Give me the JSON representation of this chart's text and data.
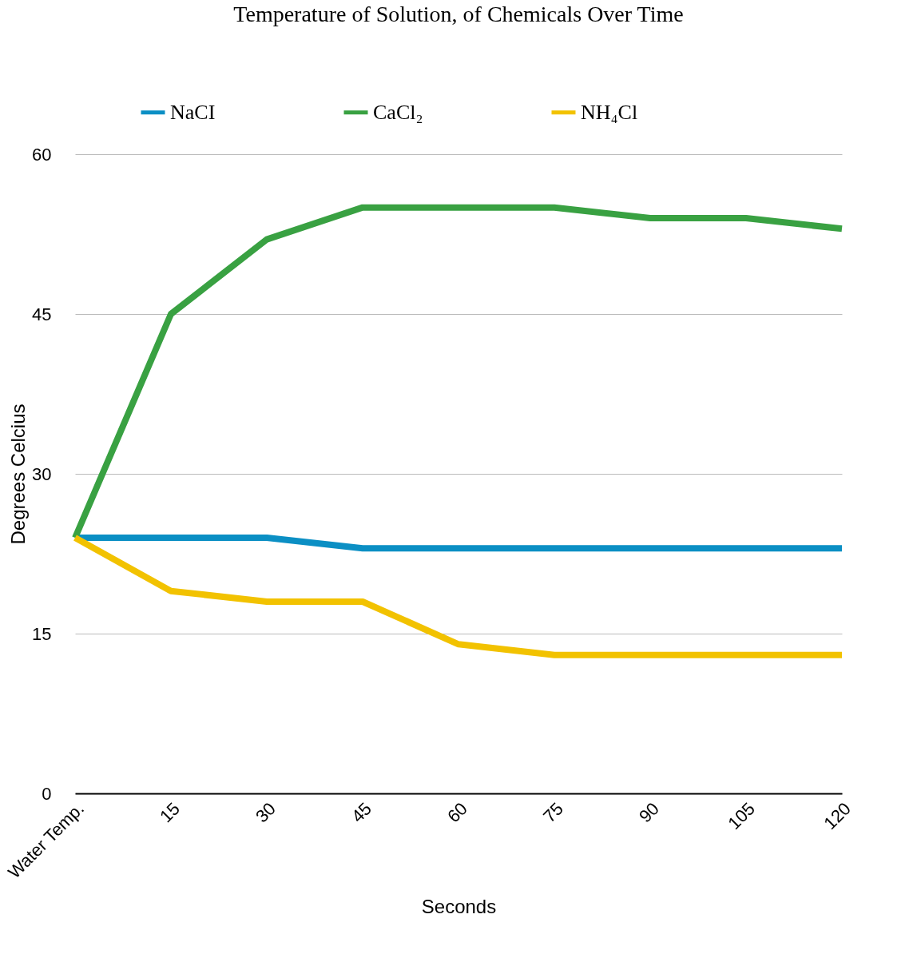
{
  "chart_data": {
    "type": "line",
    "title": "Temperature of Solution, of Chemicals Over Time",
    "xlabel": "Seconds",
    "ylabel": "Degrees Celcius",
    "categories": [
      "Water Temp.",
      "15",
      "30",
      "45",
      "60",
      "75",
      "90",
      "105",
      "120"
    ],
    "series": [
      {
        "name": "NaCI",
        "color": "#0b8fc4",
        "values": [
          24,
          24,
          24,
          23,
          23,
          23,
          23,
          23,
          23
        ]
      },
      {
        "name": "CaCl₂",
        "color": "#39a142",
        "values": [
          24,
          45,
          52,
          55,
          55,
          55,
          54,
          54,
          53
        ]
      },
      {
        "name": "NH₄Cl",
        "color": "#f2c200",
        "values": [
          24,
          19,
          18,
          18,
          14,
          13,
          13,
          13,
          13
        ]
      }
    ],
    "ylim": [
      0,
      60
    ],
    "yticks": [
      0,
      15,
      30,
      45,
      60
    ],
    "grid": "y",
    "legend": "top",
    "marker": "none",
    "line_style": "solid"
  }
}
